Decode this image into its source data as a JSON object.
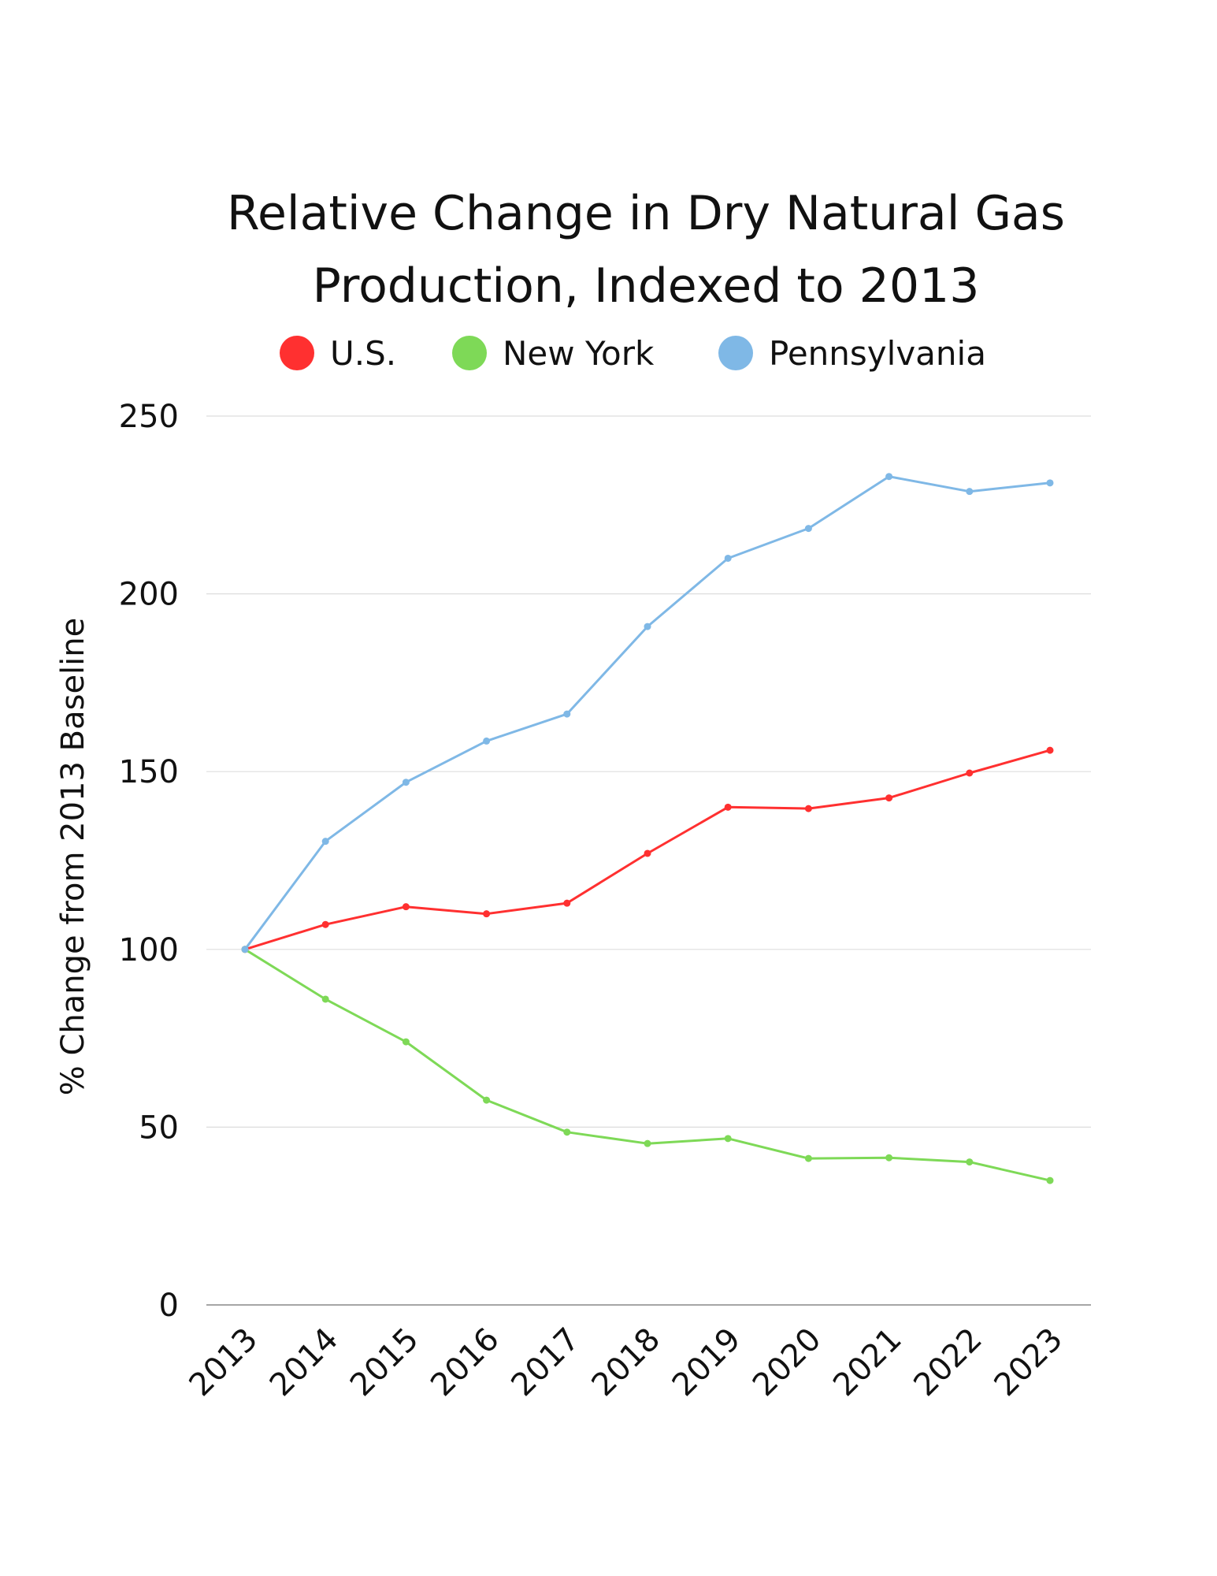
{
  "chart_data": {
    "type": "line",
    "title": [
      "Relative Change in Dry Natural Gas",
      "Production, Indexed to 2013"
    ],
    "ylabel": "% Change from 2013 Baseline",
    "xlabel": "",
    "ylim": [
      0,
      250
    ],
    "yticks": [
      0,
      50,
      100,
      150,
      200,
      250
    ],
    "grid": true,
    "legend_position": "top",
    "categories": [
      "2013",
      "2014",
      "2015",
      "2016",
      "2017",
      "2018",
      "2019",
      "2020",
      "2021",
      "2022",
      "2023"
    ],
    "series": [
      {
        "name": "U.S.",
        "color": "#ff3030",
        "values": [
          100,
          107,
          112,
          110,
          113,
          127,
          140,
          139.6,
          142.6,
          149.6,
          156
        ]
      },
      {
        "name": "New York",
        "color": "#7ed957",
        "values": [
          100,
          86,
          74,
          57.6,
          48.6,
          45.4,
          46.8,
          41.2,
          41.4,
          40.2,
          35
        ]
      },
      {
        "name": "Pennsylvania",
        "color": "#7fb8e6",
        "values": [
          100,
          130.4,
          147,
          158.6,
          166.2,
          190.8,
          210,
          218.4,
          233,
          228.8,
          231.2
        ]
      }
    ]
  }
}
